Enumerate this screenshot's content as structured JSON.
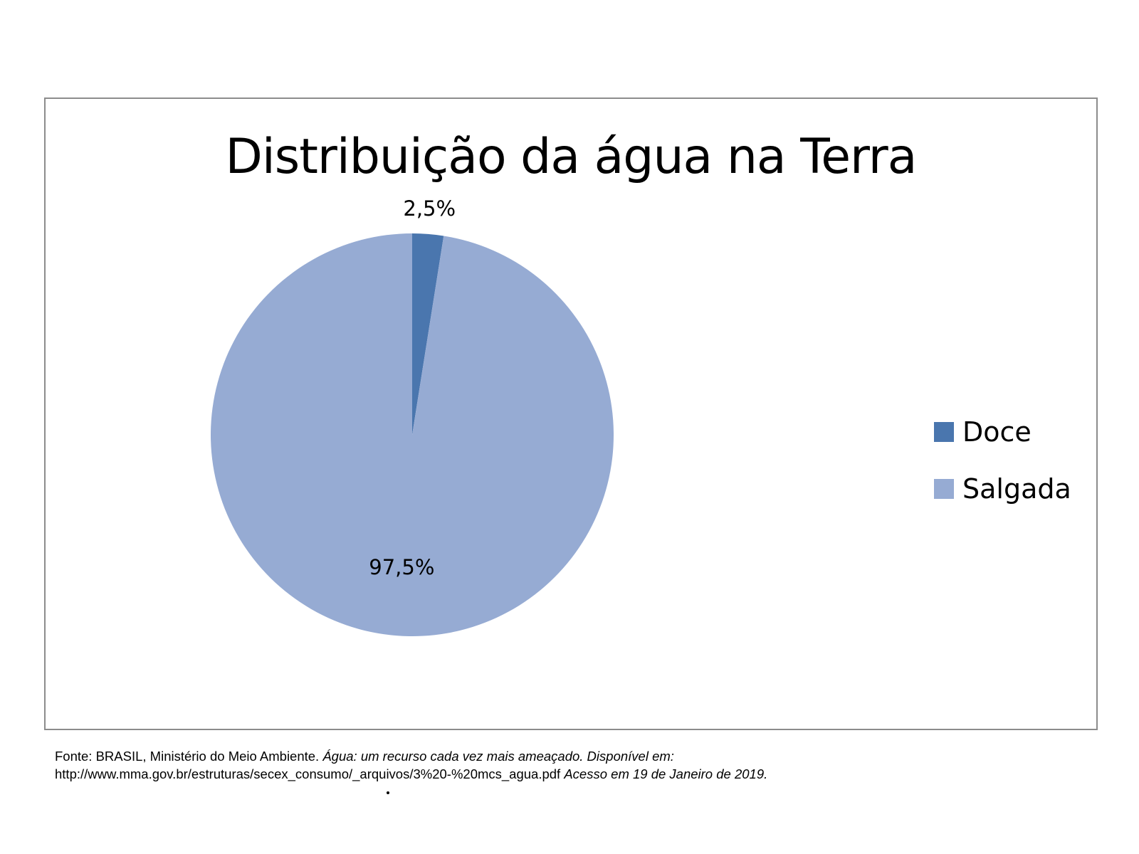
{
  "chart_data": {
    "type": "pie",
    "title": "Distribuição da água na Terra",
    "categories": [
      "Doce",
      "Salgada"
    ],
    "values": [
      2.5,
      97.5
    ],
    "data_labels": [
      "2,5%",
      "97,5%"
    ],
    "colors": [
      "#4a76ae",
      "#96abd3"
    ],
    "legend_position": "right",
    "start_angle_deg": 0,
    "direction": "clockwise"
  },
  "source": {
    "line1_plain": "Fonte: BRASIL, Ministério do Meio Ambiente. ",
    "line1_italic": "Água: um recurso cada vez mais ameaçado. Disponível em:",
    "line2_plain": "http://www.mma.gov.br/estruturas/secex_consumo/_arquivos/3%20-%20mcs_agua.pdf  ",
    "line2_italic": "Acesso em 19 de Janeiro de 2019."
  }
}
